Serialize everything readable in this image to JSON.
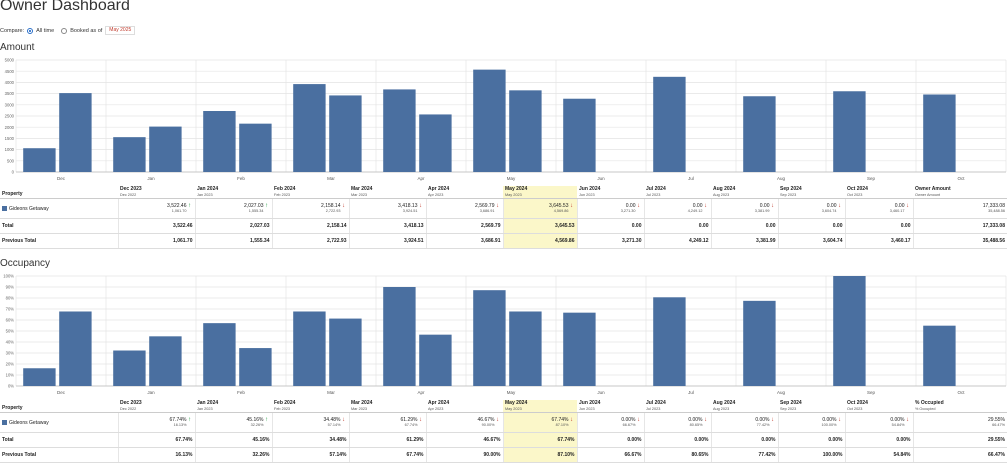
{
  "page": {
    "title": "Owner Dashboard"
  },
  "compare": {
    "label": "Compare:",
    "all_time": "All time",
    "booked_as_of": "Booked as of",
    "booked_date": "May 2025"
  },
  "colors": {
    "bar": "#4a6fa0",
    "highlight": "#fbf7c9",
    "up": "#1a9b3a",
    "down": "#c0392b"
  },
  "months": [
    {
      "label": "Dec 2023",
      "sub": "Dec 2022"
    },
    {
      "label": "Jan 2024",
      "sub": "Jan 2023"
    },
    {
      "label": "Feb 2024",
      "sub": "Feb 2023"
    },
    {
      "label": "Mar 2024",
      "sub": "Mar 2023"
    },
    {
      "label": "Apr 2024",
      "sub": "Apr 2023"
    },
    {
      "label": "May 2024",
      "sub": "May 2023"
    },
    {
      "label": "Jun 2024",
      "sub": "Jun 2023"
    },
    {
      "label": "Jul 2024",
      "sub": "Jul 2023"
    },
    {
      "label": "Aug 2024",
      "sub": "Aug 2023"
    },
    {
      "label": "Sep 2024",
      "sub": "Sep 2023"
    },
    {
      "label": "Oct 2024",
      "sub": "Oct 2023"
    }
  ],
  "highlight_index": 5,
  "amount": {
    "section_title": "Amount",
    "property_header": "Property",
    "summary_header": "Owner Amount",
    "summary_sub": "Owner Amount",
    "rows": [
      {
        "property": "Gideons Getaway",
        "cells": [
          {
            "value": "3,522.46",
            "prev": "1,061.70",
            "dir": "up"
          },
          {
            "value": "2,027.03",
            "prev": "1,555.34",
            "dir": "up"
          },
          {
            "value": "2,158.14",
            "prev": "2,722.93",
            "dir": "down"
          },
          {
            "value": "3,418.13",
            "prev": "3,924.51",
            "dir": "down"
          },
          {
            "value": "2,569.79",
            "prev": "3,686.91",
            "dir": "down"
          },
          {
            "value": "3,645.53",
            "prev": "4,569.86",
            "dir": "down"
          },
          {
            "value": "0.00",
            "prev": "3,271.30",
            "dir": "down"
          },
          {
            "value": "0.00",
            "prev": "4,249.12",
            "dir": "down"
          },
          {
            "value": "0.00",
            "prev": "3,381.99",
            "dir": "down"
          },
          {
            "value": "0.00",
            "prev": "3,604.74",
            "dir": "down"
          },
          {
            "value": "0.00",
            "prev": "3,460.17",
            "dir": "down"
          }
        ],
        "summary": {
          "value": "17,333.08",
          "prev": "35,488.56"
        }
      }
    ],
    "total_label": "Total",
    "totals": [
      "3,522.46",
      "2,027.03",
      "2,158.14",
      "3,418.13",
      "2,569.79",
      "3,645.53",
      "0.00",
      "0.00",
      "0.00",
      "0.00",
      "0.00"
    ],
    "total_summary": "17,333.08",
    "previous_label": "Previous Total",
    "previous": [
      "1,061.70",
      "1,555.34",
      "2,722.93",
      "3,924.51",
      "3,686.91",
      "4,569.86",
      "3,271.30",
      "4,249.12",
      "3,381.99",
      "3,604.74",
      "3,460.17"
    ],
    "previous_summary": "35,488.56"
  },
  "occupancy": {
    "section_title": "Occupancy",
    "property_header": "Property",
    "summary_header": "% Occupied",
    "summary_sub": "% Occupied",
    "rows": [
      {
        "property": "Gideons Getaway",
        "cells": [
          {
            "value": "67.74%",
            "prev": "16.13%",
            "dir": "up"
          },
          {
            "value": "45.16%",
            "prev": "32.26%",
            "dir": "up"
          },
          {
            "value": "34.48%",
            "prev": "57.14%",
            "dir": "down"
          },
          {
            "value": "61.29%",
            "prev": "67.74%",
            "dir": "down"
          },
          {
            "value": "46.67%",
            "prev": "90.00%",
            "dir": "down"
          },
          {
            "value": "67.74%",
            "prev": "87.10%",
            "dir": "down"
          },
          {
            "value": "0.00%",
            "prev": "66.67%",
            "dir": "down"
          },
          {
            "value": "0.00%",
            "prev": "80.65%",
            "dir": "down"
          },
          {
            "value": "0.00%",
            "prev": "77.42%",
            "dir": "down"
          },
          {
            "value": "0.00%",
            "prev": "100.00%",
            "dir": "down"
          },
          {
            "value": "0.00%",
            "prev": "54.84%",
            "dir": "down"
          }
        ],
        "summary": {
          "value": "29.55%",
          "prev": "66.47%"
        }
      }
    ],
    "total_label": "Total",
    "totals": [
      "67.74%",
      "45.16%",
      "34.48%",
      "61.29%",
      "46.67%",
      "67.74%",
      "0.00%",
      "0.00%",
      "0.00%",
      "0.00%",
      "0.00%"
    ],
    "total_summary": "29.55%",
    "previous_label": "Previous Total",
    "previous": [
      "16.13%",
      "32.26%",
      "57.14%",
      "67.74%",
      "90.00%",
      "87.10%",
      "66.67%",
      "80.65%",
      "77.42%",
      "100.00%",
      "54.84%"
    ],
    "previous_summary": "66.47%"
  },
  "chart_data": [
    {
      "type": "bar",
      "title": "Amount",
      "categories": [
        "Dec",
        "Jan",
        "Feb",
        "Mar",
        "Apr",
        "May",
        "Jun",
        "Jul",
        "Aug",
        "Sep",
        "Oct"
      ],
      "series": [
        {
          "values": [
            1061.7,
            1555.34,
            2722.93,
            3924.51,
            3686.91,
            4569.86,
            3271.3,
            4249.12,
            3381.99,
            3604.74,
            3460.17
          ]
        },
        {
          "values": [
            3522.46,
            2027.03,
            2158.14,
            3418.13,
            2569.79,
            3645.53,
            0,
            0,
            0,
            0,
            0
          ]
        }
      ],
      "ylim": [
        0,
        5000
      ],
      "yticks": [
        "0",
        "500",
        "1000",
        "1500",
        "2000",
        "2500",
        "3000",
        "3500",
        "4000",
        "4500",
        "5000"
      ],
      "grid": true
    },
    {
      "type": "bar",
      "title": "Occupancy",
      "categories": [
        "Dec",
        "Jan",
        "Feb",
        "Mar",
        "Apr",
        "May",
        "Jun",
        "Jul",
        "Aug",
        "Sep",
        "Oct"
      ],
      "series": [
        {
          "values": [
            16.13,
            32.26,
            57.14,
            67.74,
            90.0,
            87.1,
            66.67,
            80.65,
            77.42,
            100.0,
            54.84
          ]
        },
        {
          "values": [
            67.74,
            45.16,
            34.48,
            61.29,
            46.67,
            67.74,
            0,
            0,
            0,
            0,
            0
          ]
        }
      ],
      "ylim": [
        0,
        100
      ],
      "yticks": [
        "0%",
        "10%",
        "20%",
        "30%",
        "40%",
        "50%",
        "60%",
        "70%",
        "80%",
        "90%",
        "100%"
      ],
      "grid": true
    }
  ]
}
